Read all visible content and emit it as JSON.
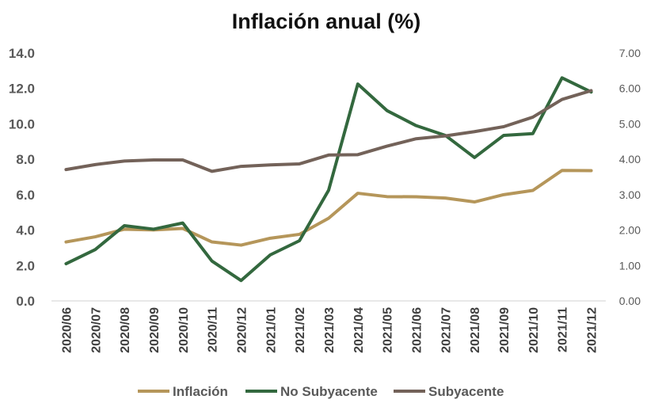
{
  "chart_data": {
    "type": "line",
    "title": "Inflación anual (%)",
    "categories": [
      "2020/06",
      "2020/07",
      "2020/08",
      "2020/09",
      "2020/10",
      "2020/11",
      "2020/12",
      "2021/01",
      "2021/02",
      "2021/03",
      "2021/04",
      "2021/05",
      "2021/06",
      "2021/07",
      "2021/08",
      "2021/09",
      "2021/10",
      "2021/11",
      "2021/12"
    ],
    "y_left": {
      "range": [
        0,
        14
      ],
      "ticks": [
        0,
        2,
        4,
        6,
        8,
        10,
        12,
        14
      ],
      "tick_labels": [
        "0.0",
        "2.0",
        "4.0",
        "6.0",
        "8.0",
        "10.0",
        "12.0",
        "14.0"
      ]
    },
    "y_right": {
      "range": [
        0,
        7
      ],
      "ticks": [
        0,
        1,
        2,
        3,
        4,
        5,
        6,
        7
      ],
      "tick_labels": [
        "0.00",
        "1.00",
        "2.00",
        "3.00",
        "4.00",
        "5.00",
        "6.00",
        "7.00"
      ]
    },
    "series": [
      {
        "name": "Inflación",
        "axis": "left",
        "color": "#B5965A",
        "values": [
          3.33,
          3.62,
          4.05,
          4.01,
          4.09,
          3.33,
          3.15,
          3.54,
          3.76,
          4.67,
          6.08,
          5.89,
          5.88,
          5.81,
          5.59,
          6.0,
          6.24,
          7.37,
          7.36
        ]
      },
      {
        "name": "No Subyacente",
        "axis": "left",
        "color": "#33683E",
        "values": [
          2.1,
          2.9,
          4.25,
          4.05,
          4.4,
          2.25,
          1.15,
          2.6,
          3.4,
          6.25,
          12.25,
          10.75,
          9.9,
          9.35,
          8.1,
          9.35,
          9.45,
          12.6,
          11.8
        ]
      },
      {
        "name": "Subyacente",
        "axis": "right",
        "color": "#736259",
        "values": [
          3.71,
          3.85,
          3.95,
          3.98,
          3.98,
          3.66,
          3.8,
          3.84,
          3.87,
          4.12,
          4.13,
          4.37,
          4.58,
          4.66,
          4.78,
          4.92,
          5.19,
          5.69,
          5.94
        ]
      }
    ],
    "legend_position": "bottom",
    "grid": false
  }
}
